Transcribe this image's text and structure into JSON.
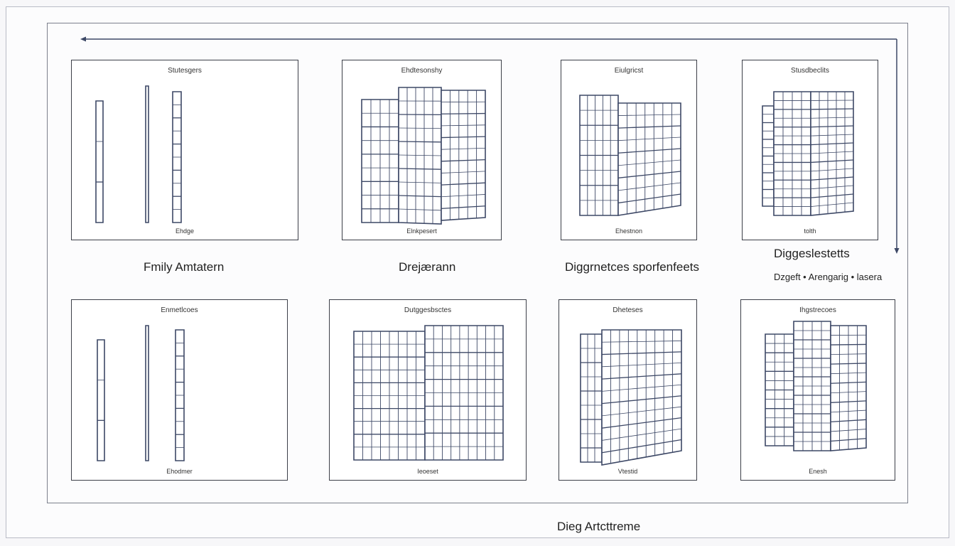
{
  "colors": {
    "line": "#3d4866",
    "frame": "#7c808c",
    "panel_border": "#3c3f48",
    "background": "#fcfcfd"
  },
  "panels": [
    {
      "top": "Stutesgers",
      "bottom": "Ehdge"
    },
    {
      "top": "Ehdtesonshy",
      "bottom": "Elnkpesert"
    },
    {
      "top": "Eiulgricst",
      "bottom": "Ehestnon"
    },
    {
      "top": "Stusdbeclits",
      "bottom": "tolth"
    },
    {
      "top": "Enmetlcoes",
      "bottom": "Ehodmer"
    },
    {
      "top": "Dutggesbsctes",
      "bottom": "Ieoeset"
    },
    {
      "top": "Dheteses",
      "bottom": "Vtestid"
    },
    {
      "top": "Ihgstrecoes",
      "bottom": "Enesh"
    }
  ],
  "captions": {
    "c1": "Fmily Amtatern",
    "c2": "Drejærann",
    "c3": "Diggrnetces sporfenfeets",
    "c4": "Diggeslestetts",
    "c5": "Dzgeft • Arengarig • lasera"
  },
  "footer": "Dieg Artcttreme",
  "icons": {
    "flow": "loop-arrow-icon",
    "building": "building-icon"
  }
}
